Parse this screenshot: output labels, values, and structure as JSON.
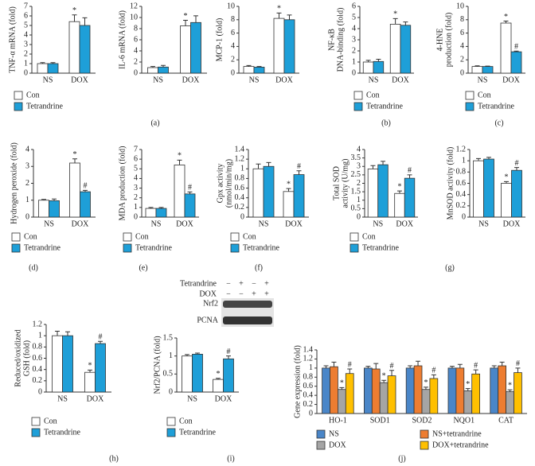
{
  "chart_data": [
    {
      "type": "bar",
      "ylabel": [
        "TNF-α mRNA (fold)"
      ],
      "categories": [
        "NS",
        "DOX"
      ],
      "ylim": [
        0,
        7
      ],
      "yticks": [
        0,
        1,
        2,
        3,
        4,
        5,
        6,
        7
      ],
      "legend": true,
      "series": [
        {
          "name": "Con",
          "color": "#ffffff",
          "values": [
            1.0,
            5.4
          ],
          "errors": [
            0.1,
            0.7
          ],
          "annotations": [
            null,
            "*"
          ]
        },
        {
          "name": "Tetrandrine",
          "color": "#1e9fd8",
          "values": [
            1.0,
            5.0
          ],
          "errors": [
            0.1,
            0.8
          ],
          "annotations": [
            null,
            null
          ]
        }
      ]
    },
    {
      "type": "bar",
      "ylabel": [
        "IL-6 mRNA (fold)"
      ],
      "categories": [
        "NS",
        "DOX"
      ],
      "ylim": [
        0,
        12
      ],
      "yticks": [
        0,
        2,
        4,
        6,
        8,
        10,
        12
      ],
      "legend": false,
      "series": [
        {
          "name": "Con",
          "color": "#ffffff",
          "values": [
            1.0,
            8.5
          ],
          "errors": [
            0.2,
            1.0
          ],
          "annotations": [
            null,
            "*"
          ]
        },
        {
          "name": "Tetrandrine",
          "color": "#1e9fd8",
          "values": [
            1.1,
            9.1
          ],
          "errors": [
            0.3,
            1.2
          ],
          "annotations": [
            null,
            null
          ]
        }
      ]
    },
    {
      "type": "bar",
      "ylabel": [
        "MCP-1 (fold)"
      ],
      "categories": [
        "NS",
        "DOX"
      ],
      "ylim": [
        0,
        10
      ],
      "yticks": [
        0,
        2,
        4,
        6,
        8,
        10
      ],
      "legend": false,
      "series": [
        {
          "name": "Con",
          "color": "#ffffff",
          "values": [
            1.0,
            8.2
          ],
          "errors": [
            0.15,
            0.8
          ],
          "annotations": [
            null,
            "*"
          ]
        },
        {
          "name": "Tetrandrine",
          "color": "#1e9fd8",
          "values": [
            0.9,
            8.0
          ],
          "errors": [
            0.1,
            0.7
          ],
          "annotations": [
            null,
            null
          ]
        }
      ]
    },
    {
      "type": "bar",
      "ylabel": [
        "NF-κB",
        "DNA-binding (fold)"
      ],
      "categories": [
        "NS",
        "DOX"
      ],
      "ylim": [
        0,
        6
      ],
      "yticks": [
        0,
        1,
        2,
        3,
        4,
        5,
        6
      ],
      "legend": true,
      "series": [
        {
          "name": "Con",
          "color": "#ffffff",
          "values": [
            1.0,
            4.4
          ],
          "errors": [
            0.15,
            0.5
          ],
          "annotations": [
            null,
            "*"
          ]
        },
        {
          "name": "Tetrandrine",
          "color": "#1e9fd8",
          "values": [
            1.05,
            4.3
          ],
          "errors": [
            0.2,
            0.3
          ],
          "annotations": [
            null,
            null
          ]
        }
      ]
    },
    {
      "type": "bar",
      "ylabel": [
        "4-HNE",
        "production (fold)"
      ],
      "categories": [
        "NS",
        "DOX"
      ],
      "ylim": [
        0,
        10
      ],
      "yticks": [
        0,
        2,
        4,
        6,
        8,
        10
      ],
      "legend": true,
      "series": [
        {
          "name": "Con",
          "color": "#ffffff",
          "values": [
            1.0,
            7.5
          ],
          "errors": [
            0.1,
            0.3
          ],
          "annotations": [
            null,
            "*"
          ]
        },
        {
          "name": "Tetrandrine",
          "color": "#1e9fd8",
          "values": [
            1.0,
            3.2
          ],
          "errors": [
            0.05,
            0.1
          ],
          "annotations": [
            null,
            "#"
          ]
        }
      ]
    },
    {
      "type": "bar",
      "ylabel": [
        "Hydrogen peroxide (fold)"
      ],
      "categories": [
        "NS",
        "DOX"
      ],
      "ylim": [
        0,
        4
      ],
      "yticks": [
        0,
        1,
        2,
        3,
        4
      ],
      "legend": true,
      "series": [
        {
          "name": "Con",
          "color": "#ffffff",
          "values": [
            1.0,
            3.2
          ],
          "errors": [
            0.05,
            0.25
          ],
          "annotations": [
            null,
            "*"
          ]
        },
        {
          "name": "Tetrandrine",
          "color": "#1e9fd8",
          "values": [
            0.97,
            1.5
          ],
          "errors": [
            0.1,
            0.08
          ],
          "annotations": [
            null,
            "#"
          ]
        }
      ]
    },
    {
      "type": "bar",
      "ylabel": [
        "MDA production (fold)"
      ],
      "categories": [
        "NS",
        "DOX"
      ],
      "ylim": [
        0,
        7
      ],
      "yticks": [
        0,
        1,
        2,
        3,
        4,
        5,
        6,
        7
      ],
      "legend": true,
      "series": [
        {
          "name": "Con",
          "color": "#ffffff",
          "values": [
            0.9,
            5.4
          ],
          "errors": [
            0.1,
            0.5
          ],
          "annotations": [
            null,
            "*"
          ]
        },
        {
          "name": "Tetrandrine",
          "color": "#1e9fd8",
          "values": [
            0.9,
            2.4
          ],
          "errors": [
            0.1,
            0.2
          ],
          "annotations": [
            null,
            "#"
          ]
        }
      ]
    },
    {
      "type": "bar",
      "ylabel": [
        "Gpx activity",
        "(nmol/min/mg)"
      ],
      "categories": [
        "NS",
        "DOX"
      ],
      "ylim": [
        0,
        1.4
      ],
      "yticks": [
        0,
        0.2,
        0.4,
        0.6,
        0.8,
        1,
        1.2,
        1.4
      ],
      "legend": true,
      "series": [
        {
          "name": "Con",
          "color": "#ffffff",
          "values": [
            1.0,
            0.53
          ],
          "errors": [
            0.1,
            0.06
          ],
          "annotations": [
            null,
            "*"
          ]
        },
        {
          "name": "Tetrandrine",
          "color": "#1e9fd8",
          "values": [
            1.05,
            0.88
          ],
          "errors": [
            0.08,
            0.08
          ],
          "annotations": [
            null,
            "#"
          ]
        }
      ]
    },
    {
      "type": "bar",
      "ylabel": [
        "Total SOD",
        "activity (U/mg)"
      ],
      "categories": [
        "NS",
        "DOX"
      ],
      "ylim": [
        0,
        4
      ],
      "yticks": [
        0,
        0.5,
        1,
        1.5,
        2,
        2.5,
        3,
        3.5,
        4
      ],
      "legend": true,
      "series": [
        {
          "name": "Con",
          "color": "#ffffff",
          "values": [
            2.85,
            1.4
          ],
          "errors": [
            0.2,
            0.15
          ],
          "annotations": [
            null,
            "*"
          ]
        },
        {
          "name": "Tetrandrine",
          "color": "#1e9fd8",
          "values": [
            3.1,
            2.3
          ],
          "errors": [
            0.2,
            0.2
          ],
          "annotations": [
            null,
            "#"
          ]
        }
      ]
    },
    {
      "type": "bar",
      "ylabel": [
        "MnSOD activity (fold)"
      ],
      "categories": [
        "NS",
        "DOX"
      ],
      "ylim": [
        0,
        1.2
      ],
      "yticks": [
        0,
        0.2,
        0.4,
        0.6,
        0.8,
        1,
        1.2
      ],
      "legend": false,
      "series": [
        {
          "name": "Con",
          "color": "#ffffff",
          "values": [
            1.0,
            0.6
          ],
          "errors": [
            0.04,
            0.03
          ],
          "annotations": [
            null,
            "*"
          ]
        },
        {
          "name": "Tetrandrine",
          "color": "#1e9fd8",
          "values": [
            1.03,
            0.83
          ],
          "errors": [
            0.03,
            0.05
          ],
          "annotations": [
            null,
            "#"
          ]
        }
      ]
    },
    {
      "type": "bar",
      "ylabel": [
        "Reduced/oxidized",
        "GSH (fold)"
      ],
      "categories": [
        "NS",
        "DOX"
      ],
      "ylim": [
        0,
        1.2
      ],
      "yticks": [
        0,
        0.2,
        0.4,
        0.6,
        0.8,
        1,
        1.2
      ],
      "legend": true,
      "series": [
        {
          "name": "Con",
          "color": "#ffffff",
          "values": [
            1.0,
            0.35
          ],
          "errors": [
            0.08,
            0.04
          ],
          "annotations": [
            null,
            "*"
          ]
        },
        {
          "name": "Tetrandrine",
          "color": "#1e9fd8",
          "values": [
            1.0,
            0.86
          ],
          "errors": [
            0.07,
            0.04
          ],
          "annotations": [
            null,
            "#"
          ]
        }
      ]
    },
    {
      "type": "bar",
      "ylabel": [
        "Nrf2/PCNA (fold)"
      ],
      "categories": [
        "NS",
        "DOX"
      ],
      "ylim": [
        0,
        1.5
      ],
      "yticks": [
        0,
        0.5,
        1,
        1.5
      ],
      "legend": true,
      "series": [
        {
          "name": "Con",
          "color": "#ffffff",
          "values": [
            1.0,
            0.35
          ],
          "errors": [
            0.04,
            0.03
          ],
          "annotations": [
            null,
            "*"
          ]
        },
        {
          "name": "Tetrandrine",
          "color": "#1e9fd8",
          "values": [
            1.05,
            0.92
          ],
          "errors": [
            0.03,
            0.08
          ],
          "annotations": [
            null,
            "#"
          ]
        }
      ]
    },
    {
      "type": "bar",
      "ylabel": [
        "Gene expression (fold)"
      ],
      "categories": [
        "HO-1",
        "SOD1",
        "SOD2",
        "NQO1",
        "CAT"
      ],
      "ylim": [
        0,
        1.4
      ],
      "yticks": [
        0,
        0.2,
        0.4,
        0.6,
        0.8,
        1,
        1.2,
        1.4
      ],
      "legend": true,
      "series": [
        {
          "name": "NS",
          "color": "#4a86c8",
          "values": [
            1.0,
            1.0,
            1.0,
            1.0,
            1.0
          ],
          "errors": [
            0.05,
            0.04,
            0.05,
            0.04,
            0.05
          ],
          "annotations": [
            null,
            null,
            null,
            null,
            null
          ]
        },
        {
          "name": "NS+tetrandrine",
          "color": "#ed7d31",
          "values": [
            1.03,
            0.98,
            1.05,
            1.0,
            1.05
          ],
          "errors": [
            0.1,
            0.12,
            0.1,
            0.08,
            0.08
          ],
          "annotations": [
            null,
            null,
            null,
            null,
            null
          ]
        },
        {
          "name": "DOX",
          "color": "#a5a5a5",
          "values": [
            0.53,
            0.68,
            0.53,
            0.5,
            0.48
          ],
          "errors": [
            0.04,
            0.05,
            0.05,
            0.05,
            0.04
          ],
          "annotations": [
            "*",
            "*",
            "*",
            "*",
            "*"
          ]
        },
        {
          "name": "DOX+tetrandrine",
          "color": "#ffc000",
          "values": [
            0.88,
            0.83,
            0.77,
            0.87,
            0.9
          ],
          "errors": [
            0.1,
            0.12,
            0.08,
            0.09,
            0.1
          ],
          "annotations": [
            "#",
            "#",
            "#",
            "#",
            "#"
          ]
        }
      ]
    }
  ],
  "blot": {
    "rows": [
      {
        "label": "Tetrandrine",
        "signs": [
          "−",
          "+",
          "−",
          "+"
        ]
      },
      {
        "label": "DOX",
        "signs": [
          "−",
          "−",
          "+",
          "+"
        ]
      }
    ],
    "bands": [
      "Nrf2",
      "PCNA"
    ]
  },
  "panel_labels": [
    "(a)",
    "(b)",
    "(c)",
    "(d)",
    "(e)",
    "(f)",
    "(g)",
    "(h)",
    "(i)",
    "(j)"
  ]
}
